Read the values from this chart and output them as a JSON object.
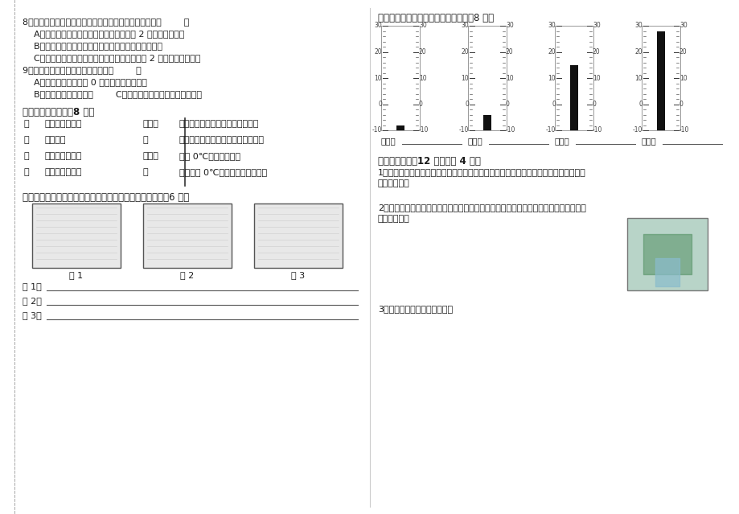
{
  "bg_color": "#ffffff",
  "page_width": 9.2,
  "page_height": 6.39,
  "dpi": 100,
  "left_questions": [
    "8、要连续测量一杯热水下降的温度变化，最好的方法是（        ）",
    "    A、先测量一次，把温度计取出后，每间隔 2 分钟再测量一次",
    "    B、先测量一次，感觉温度下降比较明显了再测量一次",
    "    C、不用取出温度计，一直放在热水里，每间隔 2 分钟观察记录一次",
    "9、对于冰融化描述不正确的选项是（        ）",
    "    A、如果外界温度低于 0 摄氏度，冰不会融化",
    "    B、温度越高冰融化越快        C、如果不放到太阳下，冰很难融化"
  ],
  "sec4_title": "四、巧手连线处：（8 分）",
  "sec4_col1": [
    "根",
    "茎",
    "叶",
    "花"
  ],
  "sec4_col2": [
    "支持、运输作用",
    "制造养料",
    "发育果实和种子",
    "吸收、固定作用"
  ],
  "sec4_col3": [
    "云、雾",
    "露",
    "霜、雪",
    "冰"
  ],
  "sec4_col4": [
    "水蒸气遇冷凝结在所接触的物体上",
    "水蒸气受冷凝结成小水滴漂浮在空中",
    "水在 0℃以下凝固而成",
    "水蒸气在 0℃以下受冷变成的冰晶"
  ],
  "sec5_title": "五、写出下面各图中使用温度计测水温实验的错误之处。（6 分）",
  "sec5_fig_labels": [
    "图 1",
    "图 2",
    "图 3"
  ],
  "sec5_ans_labels": [
    "图 1：",
    "图 2：",
    "图 3："
  ],
  "sec6_title": "六、读出或写出以下温度计的读数。（8 分）",
  "thermo_labels": [
    "读作：",
    "读作：",
    "写作：",
    "写作："
  ],
  "thermo_levels": [
    -8,
    -4,
    15,
    28
  ],
  "thermo_temp_min": -10,
  "thermo_temp_max": 30,
  "sec7_title": "七、简答题。（12 分，每题 4 分）",
  "sec7_q1_line1": "1、把一只小老鼠关在密闭的玻璃罩内，放到阳光下，为了使小老鼠短时间内不死亡，你",
  "sec7_q1_line2": "有什么方法？",
  "sec7_q2_line1": "2、在做研究植物根的作用的实验时，如图，试管中的水量会发生怎样的变化？这个实验",
  "sec7_q2_line2": "能证明什么？",
  "sec7_q3": "3、写出测量水温的正确方法。"
}
